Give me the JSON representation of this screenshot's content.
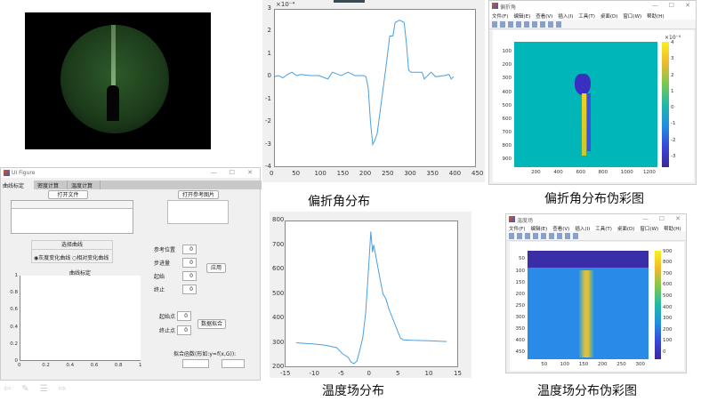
{
  "captions": {
    "deflection": "偏折角分布",
    "deflection_pseudo": "偏折角分布伪彩图",
    "temperature": "温度场分布",
    "temperature_pseudo": "温度场分布伪彩图"
  },
  "ui_figure": {
    "title": "UI Figure",
    "tabs": [
      "曲线标定",
      "密度计算",
      "温度计算"
    ],
    "open_file": "打开文件",
    "open_ref_image": "打开参考图片",
    "curve_group": {
      "title": "选择曲线",
      "options": [
        "灰度变化曲线",
        "相对变化曲线"
      ],
      "selected": 0
    },
    "axes_title": "曲线标定",
    "axes_xticks": [
      "0",
      "0.2",
      "0.4",
      "0.6",
      "0.8",
      "1"
    ],
    "axes_yticks": [
      "0",
      "0.2",
      "0.4",
      "0.6",
      "0.8",
      "1"
    ],
    "fields": [
      {
        "label": "参考位置",
        "value": "0"
      },
      {
        "label": "步进量",
        "value": "0"
      },
      {
        "label": "起始",
        "value": "0"
      },
      {
        "label": "终止",
        "value": "0"
      }
    ],
    "apply": "应用",
    "fit_fields": [
      {
        "label": "起始点",
        "value": "0"
      },
      {
        "label": "终止点",
        "value": "0"
      }
    ],
    "fit_button": "数据拟合",
    "fit_func_label": "拟合函数(形如:y=f(x,G)):",
    "fit_inputs": [
      "",
      ""
    ]
  },
  "deflection_window": {
    "title": "偏折角",
    "menu": [
      "文件(F)",
      "编辑(E)",
      "查看(V)",
      "插入(I)",
      "工具(T)",
      "桌面(D)",
      "窗口(W)",
      "帮助(H)"
    ],
    "yticks": [
      "100",
      "200",
      "300",
      "400",
      "500",
      "600",
      "700",
      "800",
      "900"
    ],
    "xticks": [
      "200",
      "400",
      "600",
      "800",
      "1000",
      "1200"
    ],
    "colorbar_ticks": [
      "4",
      "3",
      "2",
      "1",
      "0",
      "-1",
      "-2",
      "-3"
    ],
    "colorbar_exponent": "×10⁻⁴"
  },
  "temperature_window": {
    "title": "温度场",
    "menu": [
      "文件(F)",
      "编辑(E)",
      "查看(V)",
      "插入(I)",
      "工具(T)",
      "桌面(D)",
      "窗口(W)",
      "帮助(H)"
    ],
    "yticks": [
      "50",
      "100",
      "150",
      "200",
      "250",
      "300",
      "350",
      "400",
      "450"
    ],
    "xticks": [
      "50",
      "100",
      "150",
      "200",
      "250",
      "300"
    ],
    "colorbar_ticks": [
      "900",
      "800",
      "700",
      "600",
      "500",
      "400",
      "300",
      "200",
      "100",
      "0"
    ]
  },
  "chart_data": [
    {
      "type": "line",
      "title": "",
      "exponent_label": "×10⁻⁴",
      "xlim": [
        0,
        450
      ],
      "ylim": [
        -4,
        3
      ],
      "xticks": [
        0,
        50,
        100,
        150,
        200,
        250,
        300,
        350,
        400,
        450
      ],
      "yticks": [
        -4,
        -3,
        -2,
        -1,
        0,
        1,
        2,
        3
      ],
      "color": "#4a9fe0",
      "x": [
        0,
        10,
        20,
        30,
        40,
        50,
        60,
        80,
        100,
        120,
        130,
        150,
        165,
        180,
        200,
        205,
        210,
        215,
        220,
        225,
        230,
        240,
        250,
        258,
        265,
        270,
        280,
        290,
        295,
        300,
        305,
        320,
        330,
        335,
        350,
        360,
        380,
        390,
        395,
        400
      ],
      "y": [
        0,
        0.05,
        -0.05,
        0.1,
        0.2,
        0.05,
        0.1,
        0.05,
        0.05,
        -0.1,
        0.2,
        0.05,
        0.2,
        0.05,
        0.05,
        0,
        -0.5,
        -2,
        -3,
        -2.8,
        -2.5,
        -1,
        0.5,
        1.8,
        1.8,
        2.4,
        2.5,
        2.4,
        1.5,
        0.3,
        0.2,
        0.2,
        0.2,
        -0.1,
        0.2,
        0,
        0.05,
        0.1,
        -0.1,
        0
      ]
    },
    {
      "type": "line",
      "title": "",
      "xlim": [
        -15,
        15
      ],
      "ylim": [
        200,
        800
      ],
      "xticks": [
        -15,
        -10,
        -5,
        0,
        5,
        10,
        15
      ],
      "yticks": [
        200,
        300,
        400,
        500,
        600,
        700,
        800
      ],
      "color": "#4a9fe0",
      "x": [
        -13,
        -10,
        -8,
        -6,
        -5,
        -4,
        -3.5,
        -3,
        -2.5,
        -2,
        -1.5,
        -1,
        -0.5,
        -0.1,
        0.1,
        0.2,
        0.4,
        0.8,
        1.5,
        2,
        2.5,
        3,
        4,
        5,
        5.5,
        7,
        10,
        13
      ],
      "y": [
        300,
        295,
        290,
        280,
        255,
        240,
        220,
        215,
        225,
        270,
        320,
        420,
        600,
        755,
        700,
        670,
        700,
        650,
        560,
        500,
        480,
        440,
        380,
        320,
        312,
        310,
        308,
        305
      ]
    }
  ]
}
